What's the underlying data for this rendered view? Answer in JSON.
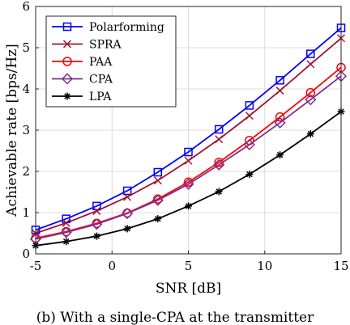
{
  "chart_data": {
    "type": "line",
    "title": "",
    "xlabel": "SNR [dB]",
    "ylabel": "Achievable rate [bps/Hz]",
    "xlim": [
      -5,
      15
    ],
    "ylim": [
      0,
      6
    ],
    "grid": true,
    "legend_position": "top-left",
    "x_ticks": [
      "-5",
      "0",
      "5",
      "10",
      "15"
    ],
    "y_ticks": [
      "0",
      "1",
      "2",
      "3",
      "4",
      "5",
      "6"
    ],
    "series": [
      {
        "name": "Polarforming",
        "color": "#0000ff",
        "marker": "square",
        "x": [
          -5,
          -3,
          -1,
          1,
          3,
          5,
          7,
          9,
          11,
          13,
          15
        ],
        "y": [
          0.58,
          0.85,
          1.16,
          1.53,
          1.98,
          2.47,
          3.02,
          3.6,
          4.21,
          4.85,
          5.48
        ]
      },
      {
        "name": "SPRA",
        "color": "#a2142f",
        "marker": "x",
        "x": [
          -5,
          -3,
          -1,
          1,
          3,
          5,
          7,
          9,
          11,
          13,
          15
        ],
        "y": [
          0.5,
          0.75,
          1.04,
          1.38,
          1.78,
          2.26,
          2.78,
          3.35,
          3.96,
          4.6,
          5.23
        ]
      },
      {
        "name": "PAA",
        "color": "#ff0000",
        "marker": "circle",
        "x": [
          -5,
          -3,
          -1,
          1,
          3,
          5,
          7,
          9,
          11,
          13,
          15
        ],
        "y": [
          0.38,
          0.54,
          0.74,
          0.99,
          1.33,
          1.74,
          2.22,
          2.75,
          3.32,
          3.91,
          4.52
        ]
      },
      {
        "name": "CPA",
        "color": "#7e2f8e",
        "marker": "diamond",
        "x": [
          -5,
          -3,
          -1,
          1,
          3,
          5,
          7,
          9,
          11,
          13,
          15
        ],
        "y": [
          0.36,
          0.52,
          0.72,
          0.98,
          1.3,
          1.69,
          2.16,
          2.65,
          3.18,
          3.74,
          4.31
        ]
      },
      {
        "name": "LPA",
        "color": "#000000",
        "marker": "asterisk",
        "x": [
          -5,
          -3,
          -1,
          1,
          3,
          5,
          7,
          9,
          11,
          13,
          15
        ],
        "y": [
          0.2,
          0.3,
          0.43,
          0.61,
          0.85,
          1.16,
          1.51,
          1.93,
          2.4,
          2.91,
          3.45
        ]
      }
    ]
  },
  "caption": "(b) With a single-CPA at the transmitter"
}
